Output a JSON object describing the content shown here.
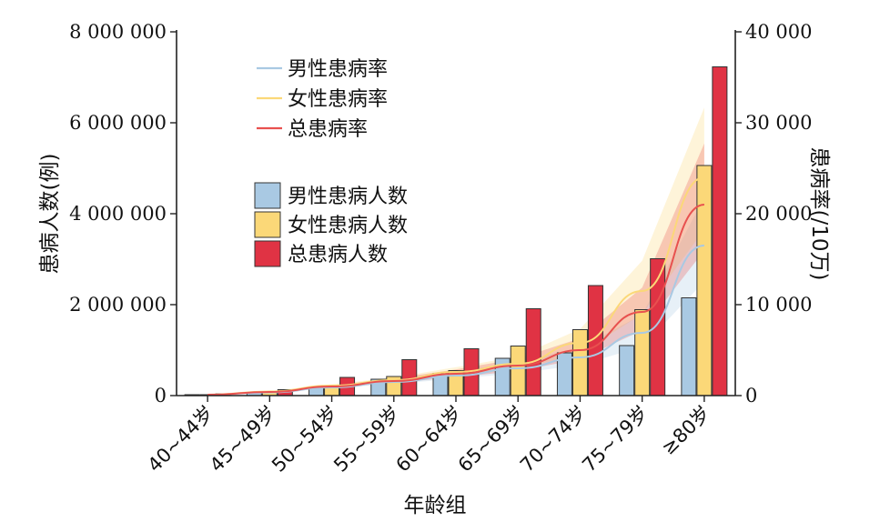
{
  "chart_data": {
    "type": "bar",
    "xlabel": "年龄组",
    "ylabel_left": "患病人数(例)",
    "ylabel_right": "患病率(/10万)",
    "ylim_left": [
      0,
      8000000
    ],
    "ylim_right": [
      0,
      40000
    ],
    "yticks_left": [
      "0",
      "2 000 000",
      "4 000 000",
      "6 000 000",
      "8 000 000"
    ],
    "yticks_right": [
      "0",
      "10 000",
      "20 000",
      "30 000",
      "40 000"
    ],
    "categories": [
      "40~44岁",
      "45~49岁",
      "50~54岁",
      "55~59岁",
      "60~64岁",
      "65~69岁",
      "70~74岁",
      "75~79岁",
      "≥80岁"
    ],
    "bar_series": [
      {
        "name": "男性患病人数",
        "color": "#a9c9e3",
        "values": [
          20000,
          60000,
          180000,
          360000,
          490000,
          820000,
          940000,
          1100000,
          2150000
        ]
      },
      {
        "name": "女性患病人数",
        "color": "#fbd878",
        "values": [
          20000,
          80000,
          200000,
          420000,
          550000,
          1090000,
          1450000,
          1890000,
          5060000
        ]
      },
      {
        "name": "总患病人数",
        "color": "#e03344",
        "values": [
          40000,
          130000,
          400000,
          790000,
          1030000,
          1910000,
          2420000,
          3010000,
          7230000
        ]
      }
    ],
    "line_series": [
      {
        "name": "男性患病率",
        "color": "#a9c9e3",
        "values": [
          100,
          350,
          900,
          1500,
          2200,
          3000,
          4200,
          6900,
          16500
        ]
      },
      {
        "name": "女性患病率",
        "color": "#fbd878",
        "values": [
          100,
          450,
          1100,
          1700,
          2600,
          3500,
          5800,
          11500,
          24000
        ]
      },
      {
        "name": "总患病率",
        "color": "#e8514f",
        "values": [
          100,
          400,
          1000,
          1600,
          2400,
          3300,
          5000,
          9200,
          21000
        ]
      }
    ],
    "legend_lines_placement": "upper-left",
    "legend_bars_placement": "middle-left",
    "grid": false
  }
}
